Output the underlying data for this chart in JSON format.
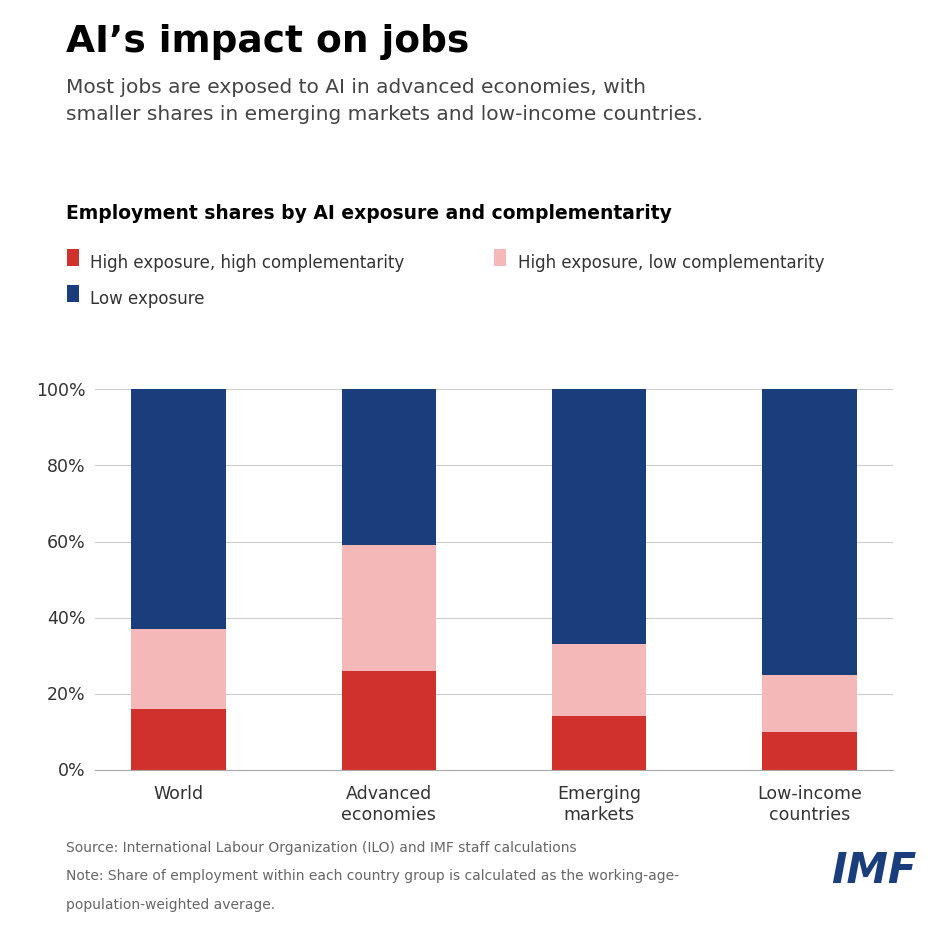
{
  "title": "AI’s impact on jobs",
  "subtitle": "Most jobs are exposed to AI in advanced economies, with\nsmaller shares in emerging markets and low-income countries.",
  "chart_title": "Employment shares by AI exposure and complementarity",
  "categories": [
    "World",
    "Advanced\neconomies",
    "Emerging\nmarkets",
    "Low-income\ncountries"
  ],
  "high_exp_high_comp": [
    16,
    26,
    14,
    10
  ],
  "high_exp_low_comp": [
    21,
    33,
    19,
    15
  ],
  "low_exposure": [
    63,
    41,
    67,
    75
  ],
  "colors": {
    "high_exp_high_comp": "#d0312d",
    "high_exp_low_comp": "#f4b8b8",
    "low_exposure": "#1a3d7c"
  },
  "legend_labels": {
    "high_exp_high_comp": "High exposure, high complementarity",
    "high_exp_low_comp": "High exposure, low complementarity",
    "low_exposure": "Low exposure"
  },
  "source_line1": "Source: International Labour Organization (ILO) and IMF staff calculations",
  "source_line2": "Note: Share of employment within each country group is calculated as the working-age-",
  "source_line3": "population-weighted average.",
  "imf_logo_color": "#1a3d7c",
  "background_color": "#ffffff",
  "bar_width": 0.45,
  "ylim": [
    0,
    100
  ],
  "yticks": [
    0,
    20,
    40,
    60,
    80,
    100
  ],
  "ytick_labels": [
    "0%",
    "20%",
    "40%",
    "60%",
    "80%",
    "100%"
  ]
}
